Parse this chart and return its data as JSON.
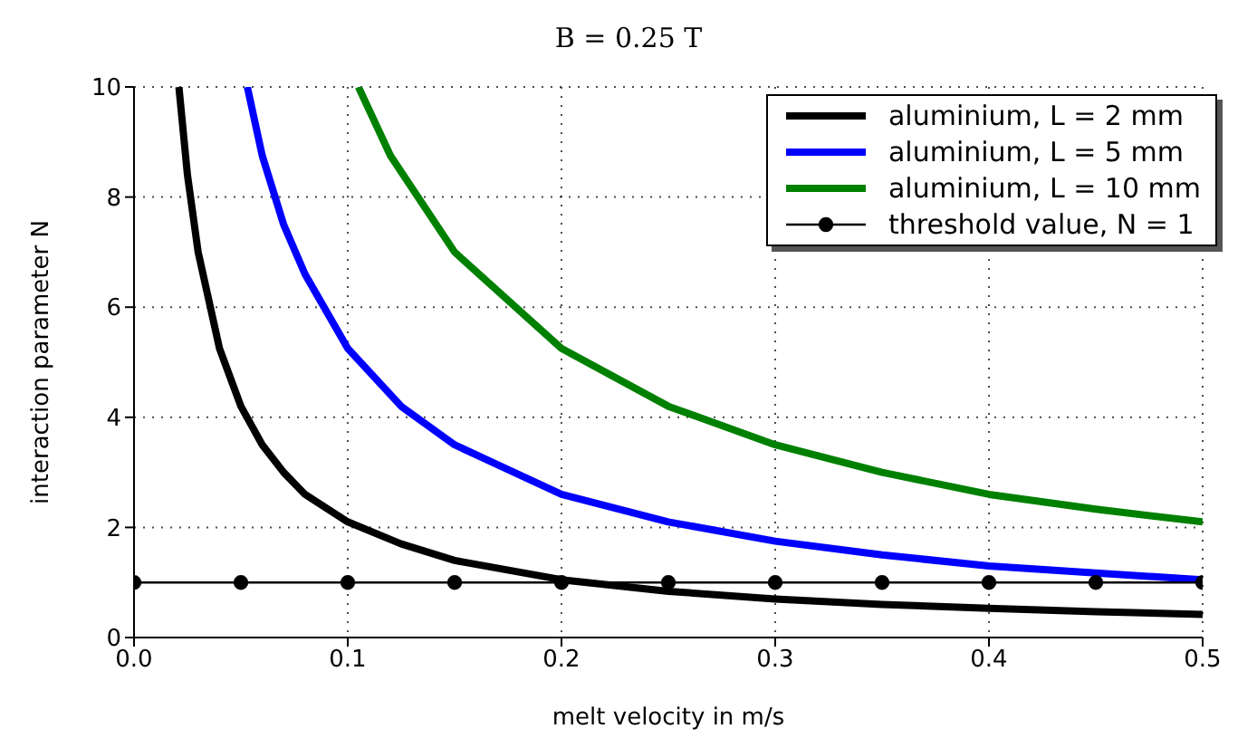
{
  "chart_data": {
    "type": "line",
    "title": "B = 0.25 T",
    "xlabel": "melt velocity in m/s",
    "ylabel": "interaction parameter N",
    "xlim": [
      0,
      0.5
    ],
    "ylim": [
      0,
      10
    ],
    "xticks": [
      {
        "value": 0,
        "label": "0.0"
      },
      0.1,
      0.2,
      0.3,
      0.4,
      0.5
    ],
    "yticks": [
      0,
      2,
      4,
      6,
      8,
      10
    ],
    "grid": true,
    "legend": "top right",
    "line_style": "solid",
    "series": [
      {
        "name": "aluminium, L = 2 mm",
        "color": "#000000",
        "marker": "none",
        "x": [
          0.021,
          0.025,
          0.03,
          0.04,
          0.05,
          0.06,
          0.07,
          0.08,
          0.1,
          0.125,
          0.15,
          0.2,
          0.25,
          0.3,
          0.35,
          0.4,
          0.45,
          0.5
        ],
        "values": [
          10,
          8.4,
          7,
          5.25,
          4.2,
          3.5,
          3,
          2.6,
          2.1,
          1.7,
          1.4,
          1.05,
          0.84,
          0.7,
          0.6,
          0.53,
          0.47,
          0.42
        ]
      },
      {
        "name": "aluminium, L = 5 mm",
        "color": "#0000ff",
        "marker": "none",
        "x": [
          0.053,
          0.06,
          0.07,
          0.08,
          0.1,
          0.125,
          0.15,
          0.2,
          0.25,
          0.3,
          0.35,
          0.4,
          0.45,
          0.5
        ],
        "values": [
          10,
          8.75,
          7.5,
          6.6,
          5.25,
          4.2,
          3.5,
          2.6,
          2.1,
          1.75,
          1.5,
          1.3,
          1.17,
          1.05
        ]
      },
      {
        "name": "aluminium, L = 10 mm",
        "color": "#008000",
        "marker": "none",
        "x": [
          0.105,
          0.12,
          0.15,
          0.2,
          0.25,
          0.3,
          0.35,
          0.4,
          0.45,
          0.5
        ],
        "values": [
          10,
          8.75,
          7,
          5.25,
          4.2,
          3.5,
          3,
          2.6,
          2.33,
          2.1
        ]
      },
      {
        "name": "threshold value, N = 1",
        "color": "#000000",
        "marker": "circle",
        "x": [
          0,
          0.05,
          0.1,
          0.15,
          0.2,
          0.25,
          0.3,
          0.35,
          0.4,
          0.45,
          0.5
        ],
        "values": [
          1,
          1,
          1,
          1,
          1,
          1,
          1,
          1,
          1,
          1,
          1
        ]
      }
    ]
  }
}
